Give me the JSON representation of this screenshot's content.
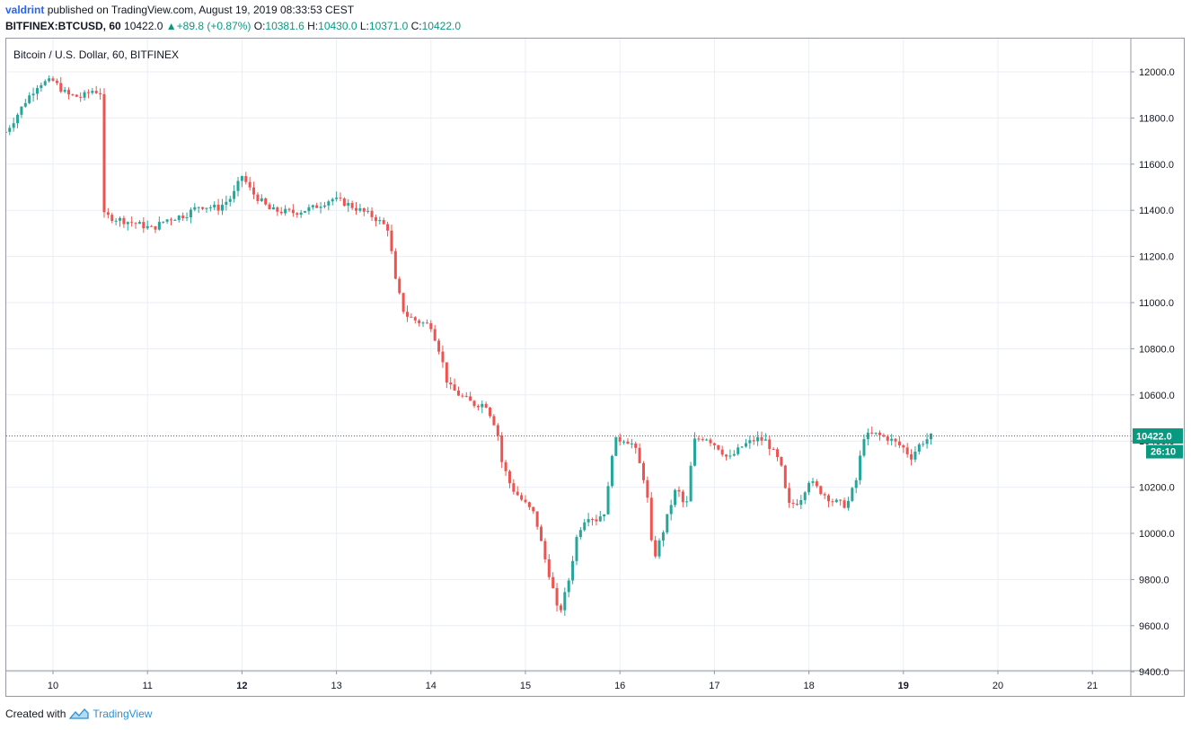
{
  "header": {
    "publisher": "valdrint",
    "published_text": "published on TradingView.com, August 19, 2019 08:33:53 CEST",
    "symbol": "BITFINEX:BTCUSD, 60",
    "last": "10422.0",
    "change": "+89.8 (+0.87%)",
    "o_label": "O:",
    "o_value": "10381.6",
    "h_label": "H:",
    "h_value": "10430.0",
    "l_label": "L:",
    "l_value": "10371.0",
    "c_label": "C:",
    "c_value": "10422.0"
  },
  "footer": {
    "created_with": "Created with",
    "brand": "TradingView"
  },
  "colors": {
    "up": "#26a69a",
    "down": "#ef5350",
    "grid": "#e9eef4",
    "axis": "#9598a1",
    "price_line": "#089981"
  },
  "chart_data": {
    "type": "candlestick",
    "title": "Bitcoin / U.S. Dollar, 60, BITFINEX",
    "ylim": [
      9400,
      12150
    ],
    "y_ticks": [
      "12000.0",
      "11800.0",
      "11600.0",
      "11400.0",
      "11200.0",
      "11000.0",
      "10800.0",
      "10600.0",
      "10400.0",
      "10200.0",
      "10000.0",
      "9800.0",
      "9600.0",
      "9400.0"
    ],
    "x_ticks": [
      {
        "label": "10",
        "day": 10,
        "bold": false
      },
      {
        "label": "11",
        "day": 11,
        "bold": false
      },
      {
        "label": "12",
        "day": 12,
        "bold": true
      },
      {
        "label": "13",
        "day": 13,
        "bold": false
      },
      {
        "label": "14",
        "day": 14,
        "bold": false
      },
      {
        "label": "15",
        "day": 15,
        "bold": false
      },
      {
        "label": "16",
        "day": 16,
        "bold": false
      },
      {
        "label": "17",
        "day": 17,
        "bold": false
      },
      {
        "label": "18",
        "day": 18,
        "bold": false
      },
      {
        "label": "19",
        "day": 19,
        "bold": true
      },
      {
        "label": "20",
        "day": 20,
        "bold": false
      },
      {
        "label": "21",
        "day": 21,
        "bold": false
      }
    ],
    "xlim": [
      9.5,
      21.35
    ],
    "current_price": 10422.0,
    "current_price_label": "10422.0",
    "countdown_label": "26:10",
    "grid": true,
    "series_path": [
      [
        9.5,
        11740
      ],
      [
        9.6,
        11800
      ],
      [
        9.72,
        11880
      ],
      [
        9.85,
        11950
      ],
      [
        10.0,
        11960
      ],
      [
        10.15,
        11900
      ],
      [
        10.3,
        11890
      ],
      [
        10.42,
        11920
      ],
      [
        10.5,
        11910
      ],
      [
        10.52,
        11380
      ],
      [
        10.7,
        11360
      ],
      [
        10.9,
        11340
      ],
      [
        11.05,
        11320
      ],
      [
        11.2,
        11360
      ],
      [
        11.4,
        11380
      ],
      [
        11.55,
        11420
      ],
      [
        11.75,
        11410
      ],
      [
        11.9,
        11460
      ],
      [
        12.0,
        11550
      ],
      [
        12.1,
        11480
      ],
      [
        12.3,
        11400
      ],
      [
        12.55,
        11390
      ],
      [
        12.75,
        11410
      ],
      [
        12.95,
        11450
      ],
      [
        13.1,
        11430
      ],
      [
        13.25,
        11400
      ],
      [
        13.4,
        11370
      ],
      [
        13.55,
        11320
      ],
      [
        13.62,
        11100
      ],
      [
        13.72,
        10950
      ],
      [
        13.85,
        10920
      ],
      [
        14.0,
        10900
      ],
      [
        14.1,
        10780
      ],
      [
        14.18,
        10640
      ],
      [
        14.3,
        10600
      ],
      [
        14.45,
        10560
      ],
      [
        14.58,
        10560
      ],
      [
        14.7,
        10450
      ],
      [
        14.75,
        10310
      ],
      [
        14.85,
        10200
      ],
      [
        14.95,
        10150
      ],
      [
        15.1,
        10080
      ],
      [
        15.2,
        9900
      ],
      [
        15.28,
        9780
      ],
      [
        15.35,
        9640
      ],
      [
        15.45,
        9780
      ],
      [
        15.55,
        10000
      ],
      [
        15.65,
        10080
      ],
      [
        15.75,
        10060
      ],
      [
        15.85,
        10100
      ],
      [
        15.93,
        10400
      ],
      [
        16.05,
        10410
      ],
      [
        16.15,
        10380
      ],
      [
        16.28,
        10200
      ],
      [
        16.35,
        9880
      ],
      [
        16.45,
        10000
      ],
      [
        16.55,
        10140
      ],
      [
        16.6,
        10200
      ],
      [
        16.7,
        10100
      ],
      [
        16.78,
        10400
      ],
      [
        16.9,
        10420
      ],
      [
        17.05,
        10370
      ],
      [
        17.15,
        10320
      ],
      [
        17.3,
        10380
      ],
      [
        17.45,
        10410
      ],
      [
        17.55,
        10400
      ],
      [
        17.7,
        10300
      ],
      [
        17.78,
        10120
      ],
      [
        17.9,
        10140
      ],
      [
        18.0,
        10230
      ],
      [
        18.1,
        10190
      ],
      [
        18.25,
        10140
      ],
      [
        18.4,
        10120
      ],
      [
        18.5,
        10230
      ],
      [
        18.58,
        10420
      ],
      [
        18.7,
        10430
      ],
      [
        18.85,
        10410
      ],
      [
        19.0,
        10370
      ],
      [
        19.08,
        10330
      ],
      [
        19.18,
        10390
      ],
      [
        19.3,
        10422
      ]
    ]
  }
}
